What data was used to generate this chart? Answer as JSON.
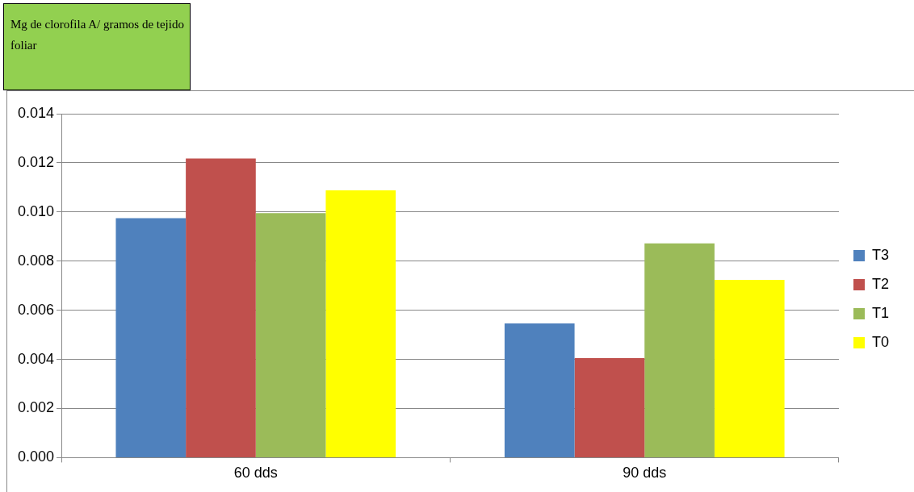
{
  "chart_data": {
    "type": "bar",
    "ylabel": "Mg de clorofila A/ gramos de tejido foliar",
    "categories": [
      "60 dds",
      "90 dds"
    ],
    "series": [
      {
        "name": "T3",
        "color": "#4f81bd",
        "values": [
          0.00975,
          0.00546
        ]
      },
      {
        "name": "T2",
        "color": "#c0504d",
        "values": [
          0.01218,
          0.00405
        ]
      },
      {
        "name": "T1",
        "color": "#9bbb59",
        "values": [
          0.00995,
          0.00872
        ]
      },
      {
        "name": "T0",
        "color": "#ffff00",
        "values": [
          0.01088,
          0.00724
        ]
      }
    ],
    "ylim": [
      0,
      0.014
    ],
    "yticks": [
      {
        "value": 0,
        "label": "0.000"
      },
      {
        "value": 0.002,
        "label": "0.002"
      },
      {
        "value": 0.004,
        "label": "0.004"
      },
      {
        "value": 0.006,
        "label": "0.006"
      },
      {
        "value": 0.008,
        "label": "0.008"
      },
      {
        "value": 0.01,
        "label": "0.010"
      },
      {
        "value": 0.012,
        "label": "0.012"
      },
      {
        "value": 0.014,
        "label": "0.014"
      }
    ],
    "grid": "y",
    "legend": "right"
  }
}
